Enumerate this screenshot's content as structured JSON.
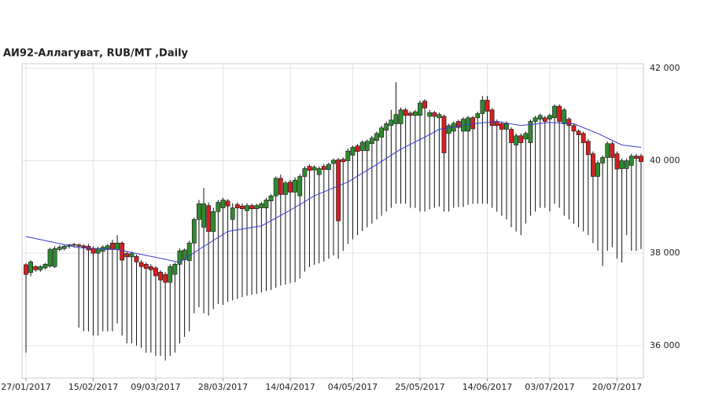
{
  "chart_data": {
    "type": "candlestick",
    "title": "АИ92-Аллагуват,  RUB/MT ,Daily",
    "up_color": "#2f8a2f",
    "down_color": "#d42020",
    "grid": true,
    "ylim": [
      35300,
      42100
    ],
    "yticks": [
      {
        "value": 36000,
        "label": "36 000"
      },
      {
        "value": 38000,
        "label": "38 000"
      },
      {
        "value": 40000,
        "label": "40 000"
      },
      {
        "value": 42000,
        "label": "42 000"
      }
    ],
    "xticks": [
      {
        "value": 0,
        "label": "27/01/2017"
      },
      {
        "value": 14,
        "label": "15/02/2017"
      },
      {
        "value": 27,
        "label": "09/03/2017"
      },
      {
        "value": 41,
        "label": "28/03/2017"
      },
      {
        "value": 55,
        "label": "14/04/2017"
      },
      {
        "value": 68,
        "label": "04/05/2017"
      },
      {
        "value": 82,
        "label": "25/05/2017"
      },
      {
        "value": 96,
        "label": "14/06/2017"
      },
      {
        "value": 109,
        "label": "03/07/2017"
      },
      {
        "value": 123,
        "label": "20/07/2017"
      }
    ],
    "open": [
      37750,
      37580,
      37710,
      37640,
      37680,
      37720,
      37710,
      38080,
      38100,
      38150,
      38180,
      38180,
      38160,
      38150,
      38100,
      38000,
      38040,
      38080,
      38220,
      38080,
      38220,
      37990,
      37920,
      37930,
      37800,
      37760,
      37710,
      37680,
      37590,
      37540,
      37370,
      37540,
      37760,
      37860,
      37840,
      38220,
      38730,
      38560,
      39030,
      38470,
      38900,
      38980,
      39130,
      38730,
      39050,
      39020,
      38920,
      39030,
      38960,
      38980,
      38980,
      39130,
      39240,
      39620,
      39270,
      39540,
      39320,
      39240,
      39660,
      39880,
      39800,
      39700,
      39880,
      39810,
      39940,
      40020,
      40030,
      40000,
      40120,
      40320,
      40220,
      40220,
      40370,
      40440,
      40510,
      40660,
      40760,
      40800,
      40800,
      41100,
      41030,
      40980,
      40980,
      41290,
      40960,
      41040,
      40930,
      40960,
      40590,
      40640,
      40850,
      40640,
      40640,
      40930,
      40930,
      41020,
      41310,
      41100,
      40850,
      40800,
      40680,
      40680,
      40340,
      40540,
      40470,
      40390,
      40850,
      40900,
      40930,
      40900,
      40930,
      41180,
      40800,
      40900,
      40760,
      40640,
      40590,
      40420,
      40150,
      39660,
      39950,
      40070,
      40370,
      40150,
      39830,
      39830,
      39900,
      40100,
      40100
    ],
    "high": [
      37780,
      37850,
      37740,
      37740,
      37790,
      38120,
      38150,
      38170,
      38190,
      38200,
      38220,
      38210,
      38190,
      38200,
      38150,
      38140,
      38170,
      38200,
      38290,
      38390,
      38260,
      38030,
      38030,
      37970,
      37850,
      37800,
      37760,
      37720,
      37630,
      37590,
      37760,
      37800,
      38100,
      38100,
      38270,
      38770,
      39150,
      39410,
      39100,
      38980,
      39150,
      39200,
      39170,
      39080,
      39100,
      39070,
      39080,
      39070,
      39070,
      39110,
      39200,
      39280,
      39660,
      39700,
      39560,
      39590,
      39640,
      39710,
      39880,
      39920,
      39900,
      39880,
      39930,
      39960,
      40050,
      40060,
      40070,
      40260,
      40330,
      40360,
      40440,
      40460,
      40540,
      40630,
      40760,
      40850,
      41100,
      41700,
      41150,
      41140,
      41070,
      41100,
      41300,
      41330,
      41100,
      41080,
      41040,
      41000,
      40800,
      40850,
      40890,
      40940,
      40970,
      40970,
      41060,
      41400,
      41400,
      41140,
      40890,
      40850,
      40850,
      40720,
      40590,
      40590,
      40630,
      40890,
      40970,
      41020,
      40970,
      41020,
      41220,
      41220,
      41140,
      40940,
      40800,
      40680,
      40630,
      40470,
      40200,
      40000,
      40120,
      40420,
      40420,
      40200,
      40050,
      40050,
      40150,
      40150,
      40150
    ],
    "low": [
      35850,
      37500,
      37600,
      37600,
      37650,
      37690,
      37680,
      38040,
      38060,
      38100,
      38120,
      36390,
      36310,
      36310,
      36220,
      36220,
      36310,
      36310,
      36310,
      36480,
      36220,
      36050,
      36050,
      36000,
      35950,
      35850,
      35850,
      35780,
      35780,
      35680,
      35780,
      35850,
      36050,
      36190,
      36310,
      36700,
      36830,
      36700,
      36650,
      36790,
      36900,
      36880,
      36950,
      36980,
      37010,
      37050,
      37080,
      37100,
      37120,
      37150,
      37180,
      37200,
      37250,
      37300,
      37320,
      37350,
      37370,
      37450,
      37600,
      37700,
      37750,
      37780,
      37820,
      37880,
      37950,
      37880,
      38050,
      38200,
      38300,
      38390,
      38480,
      38560,
      38640,
      38730,
      38810,
      38900,
      38980,
      39070,
      39070,
      39070,
      38980,
      38980,
      38900,
      38900,
      38950,
      38980,
      39010,
      38900,
      38900,
      38980,
      39000,
      39000,
      39050,
      39070,
      39070,
      39070,
      39070,
      38980,
      38900,
      38810,
      38730,
      38560,
      38470,
      38390,
      38640,
      38810,
      38900,
      38980,
      38980,
      38900,
      39070,
      38980,
      38810,
      38730,
      38640,
      38560,
      38470,
      38390,
      38220,
      38050,
      37720,
      38050,
      38130,
      37880,
      37800,
      38390,
      38050,
      38050,
      38090
    ],
    "close": [
      37540,
      37810,
      37640,
      37710,
      37760,
      38080,
      38100,
      38130,
      38150,
      38180,
      38190,
      38150,
      38130,
      38070,
      38000,
      38100,
      38130,
      38160,
      38080,
      38220,
      37850,
      37920,
      37990,
      37810,
      37710,
      37670,
      37640,
      37510,
      37420,
      37370,
      37710,
      37760,
      38050,
      38070,
      38220,
      38730,
      39070,
      39070,
      38470,
      38900,
      39100,
      39150,
      39020,
      38980,
      38980,
      38960,
      39030,
      38960,
      39030,
      39070,
      39150,
      39240,
      39620,
      39270,
      39520,
      39320,
      39580,
      39660,
      39830,
      39790,
      39860,
      39830,
      39810,
      39920,
      40010,
      38700,
      39980,
      40210,
      40290,
      40200,
      40400,
      40420,
      40490,
      40590,
      40710,
      40800,
      40880,
      41000,
      41100,
      40980,
      40980,
      41060,
      41250,
      41140,
      41040,
      40960,
      41000,
      40170,
      40760,
      40810,
      40720,
      40900,
      40930,
      40690,
      41020,
      41310,
      41070,
      40760,
      40760,
      40680,
      40800,
      40390,
      40540,
      40390,
      40590,
      40850,
      40930,
      40980,
      40850,
      40980,
      41180,
      40850,
      41100,
      40760,
      40640,
      40560,
      40390,
      40130,
      39660,
      39950,
      40070,
      40370,
      40070,
      39820,
      40000,
      40000,
      40100,
      40050,
      39980
    ],
    "ma": {
      "color": "#3a3ad0",
      "x": [
        0,
        11,
        19,
        27,
        32,
        36,
        42,
        49,
        55,
        60,
        67,
        73,
        78,
        83,
        86,
        93,
        98,
        103,
        109,
        114,
        119,
        124,
        128
      ],
      "values": [
        38360,
        38120,
        38080,
        37910,
        37800,
        38080,
        38470,
        38590,
        38930,
        39240,
        39540,
        39920,
        40250,
        40510,
        40680,
        40800,
        40850,
        40760,
        40830,
        40800,
        40590,
        40340,
        40290
      ]
    }
  }
}
